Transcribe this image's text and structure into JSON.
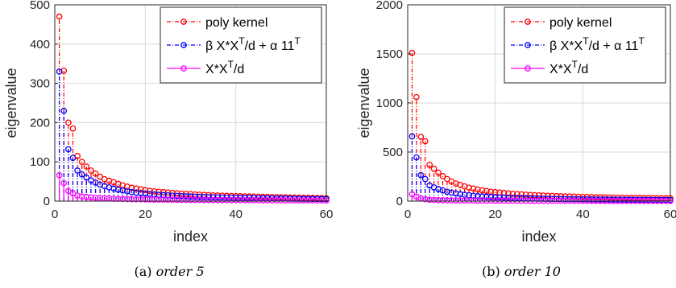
{
  "chart_data": [
    {
      "type": "stem",
      "caption_label": "(a)",
      "caption_text": "order 5",
      "xlabel": "index",
      "ylabel": "eigenvalue",
      "xlim": [
        0,
        60
      ],
      "ylim": [
        0,
        500
      ],
      "xticks": [
        0,
        20,
        40,
        60
      ],
      "yticks": [
        0,
        100,
        200,
        300,
        400,
        500
      ],
      "grid": true,
      "legend_position": "top-right",
      "series": [
        {
          "name": "poly kernel",
          "color": "#ff0000",
          "x": [
            1,
            2,
            3,
            4,
            5,
            6,
            7,
            8,
            9,
            10,
            11,
            12,
            13,
            14,
            15,
            16,
            17,
            18,
            19,
            20,
            21,
            22,
            23,
            24,
            25,
            26,
            27,
            28,
            29,
            30,
            31,
            32,
            33,
            34,
            35,
            36,
            37,
            38,
            39,
            40,
            41,
            42,
            43,
            44,
            45,
            46,
            47,
            48,
            49,
            50,
            51,
            52,
            53,
            54,
            55,
            56,
            57,
            58,
            59,
            60
          ],
          "values": [
            470,
            332,
            200,
            185,
            115,
            100,
            88,
            78,
            70,
            62,
            56,
            52,
            48,
            44,
            40,
            37,
            34,
            32,
            30,
            28,
            26,
            25,
            24,
            23,
            22,
            21,
            20,
            19,
            18.5,
            18,
            17,
            16.5,
            16,
            15.5,
            15,
            14.5,
            14,
            13.5,
            13,
            12.8,
            12.5,
            12.2,
            12,
            11.7,
            11.4,
            11,
            10.7,
            10.4,
            10.1,
            9.8,
            9.5,
            9.2,
            9,
            8.8,
            8.6,
            8.4,
            8.2,
            8,
            7.8,
            7.6
          ]
        },
        {
          "name_prefix": "β X*X",
          "name_sup1": "T",
          "name_mid": "/d + α 11",
          "name_sup2": "T",
          "color": "#0000ff",
          "x": [
            1,
            2,
            3,
            4,
            5,
            6,
            7,
            8,
            9,
            10,
            11,
            12,
            13,
            14,
            15,
            16,
            17,
            18,
            19,
            20,
            21,
            22,
            23,
            24,
            25,
            26,
            27,
            28,
            29,
            30,
            31,
            32,
            33,
            34,
            35,
            36,
            37,
            38,
            39,
            40,
            41,
            42,
            43,
            44,
            45,
            46,
            47,
            48,
            49,
            50,
            51,
            52,
            53,
            54,
            55,
            56,
            57,
            58,
            59,
            60
          ],
          "values": [
            330,
            230,
            132,
            110,
            78,
            68,
            60,
            53,
            47,
            42,
            38,
            35,
            32,
            29,
            27,
            25,
            23,
            21.5,
            20,
            19,
            18,
            17,
            16,
            15.3,
            14.7,
            14,
            13.4,
            12.8,
            12.3,
            11.8,
            11.4,
            11,
            10.6,
            10.2,
            9.9,
            9.6,
            9.3,
            9,
            8.8,
            8.6,
            8.4,
            8.2,
            8,
            7.8,
            7.6,
            7.4,
            7.2,
            7,
            6.8,
            6.6,
            6.5,
            6.3,
            6.2,
            6,
            5.9,
            5.8,
            5.6,
            5.5,
            5.4,
            5.3
          ]
        },
        {
          "name_prefix": "X*X",
          "name_sup1": "T",
          "name_mid": "/d",
          "color": "#ff00ff",
          "x": [
            1,
            2,
            3,
            4,
            5,
            6,
            7,
            8,
            9,
            10,
            11,
            12,
            13,
            14,
            15,
            16,
            17,
            18,
            19,
            20,
            21,
            22,
            23,
            24,
            25,
            26,
            27,
            28,
            29,
            30,
            31,
            32,
            33,
            34,
            35,
            36,
            37,
            38,
            39,
            40,
            41,
            42,
            43,
            44,
            45,
            46,
            47,
            48,
            49,
            50,
            51,
            52,
            53,
            54,
            55,
            56,
            57,
            58,
            59,
            60
          ],
          "values": [
            66,
            46,
            26,
            20,
            14,
            12,
            10.5,
            9.5,
            8.5,
            7.8,
            7.2,
            6.7,
            6.2,
            5.8,
            5.5,
            5.2,
            4.9,
            4.7,
            4.5,
            4.3,
            4.1,
            3.9,
            3.8,
            3.7,
            3.6,
            3.5,
            3.4,
            3.3,
            3.2,
            3.1,
            3,
            2.9,
            2.8,
            2.8,
            2.7,
            2.6,
            2.6,
            2.5,
            2.5,
            2.4,
            2.4,
            2.3,
            2.3,
            2.2,
            2.2,
            2.1,
            2.1,
            2,
            2,
            2,
            1.9,
            1.9,
            1.9,
            1.8,
            1.8,
            1.8,
            1.7,
            1.7,
            1.7,
            1.6
          ]
        }
      ]
    },
    {
      "type": "stem",
      "caption_label": "(b)",
      "caption_text": "order 10",
      "xlabel": "index",
      "ylabel": "eigenvalue",
      "xlim": [
        0,
        60
      ],
      "ylim": [
        0,
        2000
      ],
      "xticks": [
        0,
        20,
        40,
        60
      ],
      "yticks": [
        0,
        500,
        1000,
        1500,
        2000
      ],
      "grid": true,
      "legend_position": "top-right",
      "series": [
        {
          "name": "poly kernel",
          "color": "#ff0000",
          "x": [
            1,
            2,
            3,
            4,
            5,
            6,
            7,
            8,
            9,
            10,
            11,
            12,
            13,
            14,
            15,
            16,
            17,
            18,
            19,
            20,
            21,
            22,
            23,
            24,
            25,
            26,
            27,
            28,
            29,
            30,
            31,
            32,
            33,
            34,
            35,
            36,
            37,
            38,
            39,
            40,
            41,
            42,
            43,
            44,
            45,
            46,
            47,
            48,
            49,
            50,
            51,
            52,
            53,
            54,
            55,
            56,
            57,
            58,
            59,
            60
          ],
          "values": [
            1510,
            1060,
            655,
            610,
            370,
            330,
            290,
            255,
            225,
            200,
            180,
            165,
            150,
            138,
            128,
            118,
            110,
            103,
            97,
            92,
            87,
            83,
            79,
            75,
            72,
            69,
            66,
            63,
            61,
            59,
            57,
            55,
            53,
            51,
            50,
            48,
            47,
            46,
            44,
            43,
            42,
            41,
            40,
            39,
            38,
            37,
            36,
            35.5,
            35,
            34,
            33.5,
            33,
            32.5,
            32,
            31.5,
            31,
            30.5,
            30,
            29.5,
            29
          ]
        },
        {
          "name_prefix": "β X*X",
          "name_sup1": "T",
          "name_mid": "/d + α 11",
          "name_sup2": "T",
          "color": "#0000ff",
          "x": [
            1,
            2,
            3,
            4,
            5,
            6,
            7,
            8,
            9,
            10,
            11,
            12,
            13,
            14,
            15,
            16,
            17,
            18,
            19,
            20,
            21,
            22,
            23,
            24,
            25,
            26,
            27,
            28,
            29,
            30,
            31,
            32,
            33,
            34,
            35,
            36,
            37,
            38,
            39,
            40,
            41,
            42,
            43,
            44,
            45,
            46,
            47,
            48,
            49,
            50,
            51,
            52,
            53,
            54,
            55,
            56,
            57,
            58,
            59,
            60
          ],
          "values": [
            660,
            445,
            265,
            225,
            160,
            140,
            122,
            108,
            96,
            86,
            78,
            71,
            65,
            60,
            55,
            51,
            48,
            45,
            42,
            40,
            38,
            36,
            34,
            32.5,
            31,
            29.5,
            28.5,
            27.5,
            26.5,
            25.5,
            24.5,
            23.5,
            22.8,
            22,
            21.3,
            20.7,
            20,
            19.5,
            19,
            18.5,
            18,
            17.5,
            17,
            16.6,
            16.2,
            15.8,
            15.4,
            15,
            14.7,
            14.4,
            14.1,
            13.8,
            13.5,
            13.2,
            13,
            12.7,
            12.5,
            12.2,
            12,
            11.8
          ]
        },
        {
          "name_prefix": "X*X",
          "name_sup1": "T",
          "name_mid": "/d",
          "color": "#ff00ff",
          "x": [
            1,
            2,
            3,
            4,
            5,
            6,
            7,
            8,
            9,
            10,
            11,
            12,
            13,
            14,
            15,
            16,
            17,
            18,
            19,
            20,
            21,
            22,
            23,
            24,
            25,
            26,
            27,
            28,
            29,
            30,
            31,
            32,
            33,
            34,
            35,
            36,
            37,
            38,
            39,
            40,
            41,
            42,
            43,
            44,
            45,
            46,
            47,
            48,
            49,
            50,
            51,
            52,
            53,
            54,
            55,
            56,
            57,
            58,
            59,
            60
          ],
          "values": [
            70,
            46,
            26,
            20,
            14,
            12,
            10.5,
            9.5,
            8.5,
            7.8,
            7.2,
            6.7,
            6.2,
            5.8,
            5.5,
            5.2,
            4.9,
            4.7,
            4.5,
            4.3,
            4.1,
            3.9,
            3.8,
            3.7,
            3.6,
            3.5,
            3.4,
            3.3,
            3.2,
            3.1,
            3,
            2.9,
            2.8,
            2.8,
            2.7,
            2.6,
            2.6,
            2.5,
            2.5,
            2.4,
            2.4,
            2.3,
            2.3,
            2.2,
            2.2,
            2.1,
            2.1,
            2,
            2,
            2,
            1.9,
            1.9,
            1.9,
            1.8,
            1.8,
            1.8,
            1.7,
            1.7,
            1.7,
            1.6
          ]
        }
      ]
    }
  ]
}
